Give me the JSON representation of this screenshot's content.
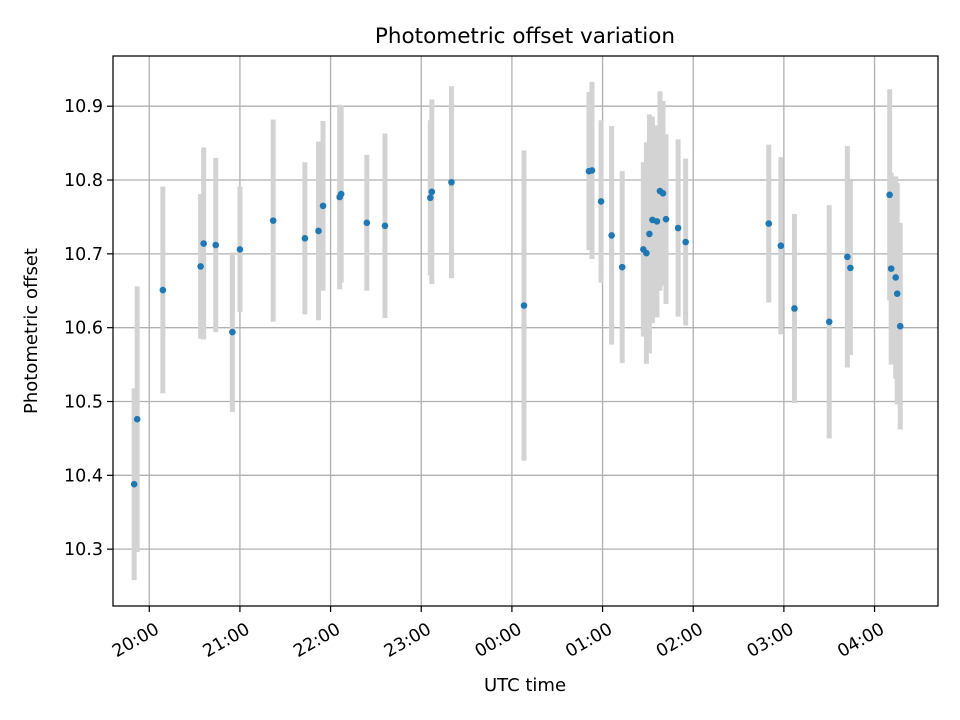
{
  "chart_data": {
    "type": "scatter",
    "title": "Photometric offset variation",
    "xlabel": "UTC time",
    "ylabel": "Photometric offset",
    "x_format": "HH:MM",
    "x_start_label_day": "D",
    "xlim": [
      "D 19:36",
      "D+1 04:42"
    ],
    "ylim": [
      10.223,
      10.968
    ],
    "x_ticks": [
      "20:00",
      "21:00",
      "22:00",
      "23:00",
      "00:00",
      "01:00",
      "02:00",
      "03:00",
      "04:00"
    ],
    "y_ticks": [
      10.3,
      10.4,
      10.5,
      10.6,
      10.7,
      10.8,
      10.9
    ],
    "grid": true,
    "colors": {
      "points": "#1f77b4",
      "errorbars": "#d3d3d3",
      "grid": "#b0b0b0",
      "axes": "#000000"
    },
    "series": [
      {
        "points": [
          {
            "t": "D 19:50",
            "y": 10.388,
            "err": 0.13
          },
          {
            "t": "D 19:52",
            "y": 10.476,
            "err": 0.18
          },
          {
            "t": "D 20:09",
            "y": 10.651,
            "err": 0.14
          },
          {
            "t": "D 20:34",
            "y": 10.683,
            "err": 0.098
          },
          {
            "t": "D 20:36",
            "y": 10.714,
            "err": 0.13
          },
          {
            "t": "D 20:44",
            "y": 10.712,
            "err": 0.118
          },
          {
            "t": "D 20:55",
            "y": 10.594,
            "err": 0.108
          },
          {
            "t": "D 21:00",
            "y": 10.706,
            "err": 0.085
          },
          {
            "t": "D 21:22",
            "y": 10.745,
            "err": 0.137
          },
          {
            "t": "D 21:43",
            "y": 10.721,
            "err": 0.103
          },
          {
            "t": "D 21:52",
            "y": 10.731,
            "err": 0.121
          },
          {
            "t": "D 21:55",
            "y": 10.765,
            "err": 0.115
          },
          {
            "t": "D 22:06",
            "y": 10.777,
            "err": 0.125
          },
          {
            "t": "D 22:07",
            "y": 10.781,
            "err": 0.12
          },
          {
            "t": "D 22:24",
            "y": 10.742,
            "err": 0.092
          },
          {
            "t": "D 22:36",
            "y": 10.738,
            "err": 0.125
          },
          {
            "t": "D 23:06",
            "y": 10.776,
            "err": 0.105
          },
          {
            "t": "D 23:07",
            "y": 10.784,
            "err": 0.125
          },
          {
            "t": "D 23:20",
            "y": 10.797,
            "err": 0.13
          },
          {
            "t": "D+1 00:08",
            "y": 10.63,
            "err": 0.21
          },
          {
            "t": "D+1 00:51",
            "y": 10.812,
            "err": 0.107
          },
          {
            "t": "D+1 00:53",
            "y": 10.813,
            "err": 0.12
          },
          {
            "t": "D+1 00:59",
            "y": 10.771,
            "err": 0.11
          },
          {
            "t": "D+1 01:06",
            "y": 10.725,
            "err": 0.148
          },
          {
            "t": "D+1 01:13",
            "y": 10.682,
            "err": 0.13
          },
          {
            "t": "D+1 01:27",
            "y": 10.706,
            "err": 0.118
          },
          {
            "t": "D+1 01:29",
            "y": 10.701,
            "err": 0.15
          },
          {
            "t": "D+1 01:31",
            "y": 10.727,
            "err": 0.162
          },
          {
            "t": "D+1 01:33",
            "y": 10.746,
            "err": 0.14
          },
          {
            "t": "D+1 01:36",
            "y": 10.744,
            "err": 0.13
          },
          {
            "t": "D+1 01:38",
            "y": 10.785,
            "err": 0.135
          },
          {
            "t": "D+1 01:40",
            "y": 10.782,
            "err": 0.125
          },
          {
            "t": "D+1 01:42",
            "y": 10.747,
            "err": 0.115
          },
          {
            "t": "D+1 01:50",
            "y": 10.735,
            "err": 0.12
          },
          {
            "t": "D+1 01:55",
            "y": 10.716,
            "err": 0.113
          },
          {
            "t": "D+1 02:50",
            "y": 10.741,
            "err": 0.107
          },
          {
            "t": "D+1 02:58",
            "y": 10.711,
            "err": 0.12
          },
          {
            "t": "D+1 03:07",
            "y": 10.626,
            "err": 0.128
          },
          {
            "t": "D+1 03:30",
            "y": 10.608,
            "err": 0.158
          },
          {
            "t": "D+1 03:42",
            "y": 10.696,
            "err": 0.15
          },
          {
            "t": "D+1 03:44",
            "y": 10.681,
            "err": 0.118
          },
          {
            "t": "D+1 04:10",
            "y": 10.78,
            "err": 0.143
          },
          {
            "t": "D+1 04:11",
            "y": 10.68,
            "err": 0.13
          },
          {
            "t": "D+1 04:14",
            "y": 10.668,
            "err": 0.137
          },
          {
            "t": "D+1 04:15",
            "y": 10.646,
            "err": 0.15
          },
          {
            "t": "D+1 04:17",
            "y": 10.602,
            "err": 0.14
          }
        ]
      }
    ]
  }
}
